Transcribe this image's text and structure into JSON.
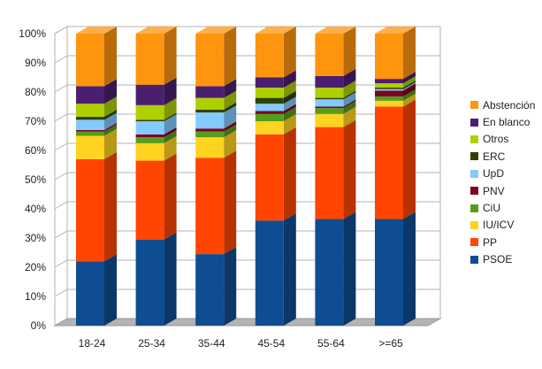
{
  "chart_data": {
    "type": "bar",
    "stacked": true,
    "percent": true,
    "three_d": true,
    "categories": [
      "18-24",
      "25-34",
      "35-44",
      "45-54",
      "55-64",
      ">=65"
    ],
    "y_ticks": [
      "0%",
      "10%",
      "20%",
      "30%",
      "40%",
      "50%",
      "60%",
      "70%",
      "80%",
      "90%",
      "100%"
    ],
    "ylim": [
      0,
      100
    ],
    "grid": true,
    "legend_position": "right",
    "series": [
      {
        "name": "PSOE",
        "color": "#0f4d92",
        "values": [
          22,
          29.5,
          24.5,
          36,
          36.5,
          36.5
        ]
      },
      {
        "name": "PP",
        "color": "#ff4500",
        "values": [
          35,
          27,
          33,
          29.5,
          31.5,
          38.5
        ]
      },
      {
        "name": "IU/ICV",
        "color": "#ffd320",
        "values": [
          8,
          6,
          7,
          4.5,
          4.5,
          2
        ]
      },
      {
        "name": "CiU",
        "color": "#579d1c",
        "values": [
          1.5,
          2,
          2,
          2.5,
          2,
          1.5
        ]
      },
      {
        "name": "PNV",
        "color": "#7e0021",
        "values": [
          0.5,
          1,
          1,
          1,
          0.5,
          2
        ]
      },
      {
        "name": "UpD",
        "color": "#83caff",
        "values": [
          3.5,
          4.5,
          5.5,
          2.5,
          2.5,
          0.5
        ]
      },
      {
        "name": "ERC",
        "color": "#314004",
        "values": [
          1,
          0.5,
          1,
          2,
          0.5,
          0.5
        ]
      },
      {
        "name": "Otros",
        "color": "#aecf00",
        "values": [
          4.5,
          5,
          4,
          3.5,
          3.5,
          1.5
        ]
      },
      {
        "name": "En blanco",
        "color": "#4b1f6f",
        "values": [
          6,
          7,
          4,
          3.5,
          4,
          1.5
        ]
      },
      {
        "name": "Abstención",
        "color": "#ff950e",
        "values": [
          18,
          17.5,
          18,
          15,
          14.5,
          15.5
        ]
      }
    ]
  }
}
